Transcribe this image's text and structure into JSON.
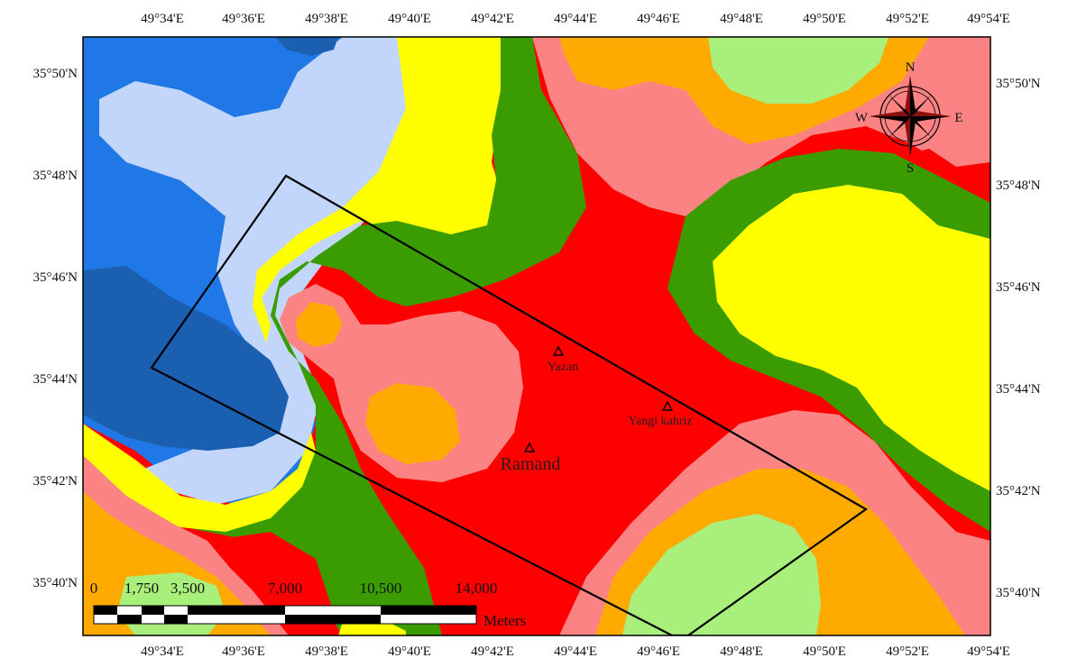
{
  "map": {
    "top_lon_ticks": [
      "49°34'E",
      "49°36'E",
      "49°38'E",
      "49°40'E",
      "49°42'E",
      "49°44'E",
      "49°46'E",
      "49°48'E",
      "49°50'E",
      "49°52'E",
      "49°54'E"
    ],
    "bottom_lon_ticks": [
      "49°34'E",
      "49°36'E",
      "49°38'E",
      "49°40'E",
      "49°42'E",
      "49°44'E",
      "49°46'E",
      "49°48'E",
      "49°50'E",
      "49°52'E",
      "49°54'E"
    ],
    "left_lat_ticks": [
      "35°50'N",
      "35°48'N",
      "35°46'N",
      "35°44'N",
      "35°42'N",
      "35°40'N"
    ],
    "right_lat_ticks": [
      "35°50'N",
      "35°48'N",
      "35°46'N",
      "35°44'N",
      "35°42'N",
      "35°40'N"
    ],
    "places": [
      {
        "name": "Yazan"
      },
      {
        "name": "Yangi kahriz"
      },
      {
        "name": "Ramand"
      }
    ],
    "compass": {
      "n": "N",
      "s": "S",
      "e": "E",
      "w": "W"
    },
    "scale_bar": {
      "labels": [
        "0",
        "1,750",
        "3,500",
        "7,000",
        "10,500",
        "14,000"
      ],
      "unit": "Meters"
    },
    "colors": {
      "dark_blue": "#1b5fb0",
      "blue": "#1f78e6",
      "light_blue": "#c2d6fb",
      "yellow": "#ffff00",
      "green": "#3a9c00",
      "red": "#ff0000",
      "pink": "#fc8383",
      "orange": "#ffaa00",
      "light_green": "#a8ef7c"
    }
  }
}
